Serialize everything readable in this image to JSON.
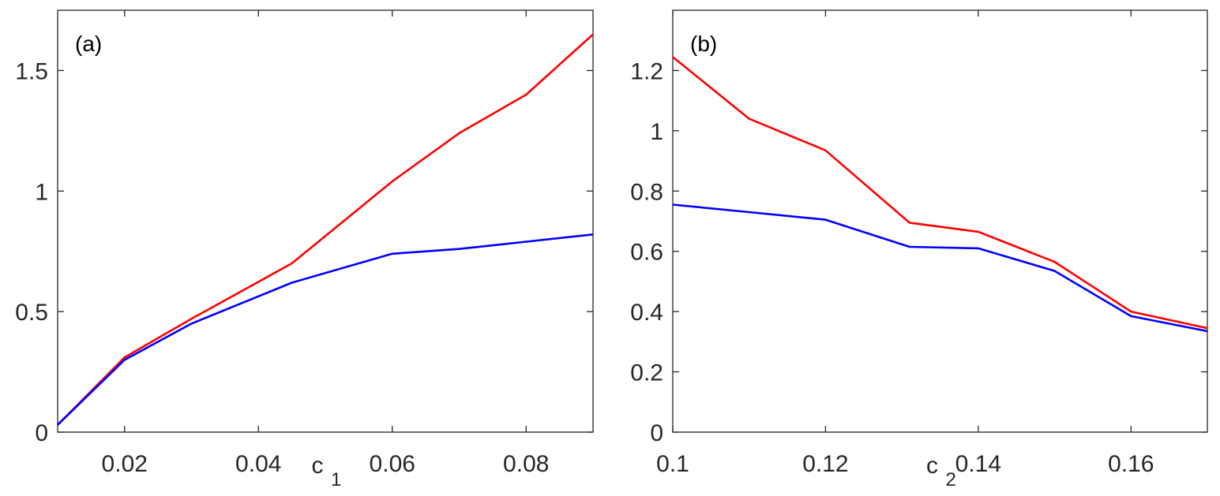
{
  "chart_data": [
    {
      "type": "line",
      "panel_label": "(a)",
      "xlabel": "c",
      "xlabel_sub": "1",
      "ylabel": "",
      "xlim": [
        0.01,
        0.09
      ],
      "ylim": [
        0,
        1.75
      ],
      "xticks": [
        0.02,
        0.04,
        0.06,
        0.08
      ],
      "xtick_labels": [
        "0.02",
        "0.04",
        "0.06",
        "0.08"
      ],
      "yticks": [
        0,
        0.5,
        1,
        1.5
      ],
      "ytick_labels": [
        "0",
        "0.5",
        "1",
        "1.5"
      ],
      "grid": false,
      "series": [
        {
          "color": "#ff0000",
          "x": [
            0.01,
            0.02,
            0.03,
            0.045,
            0.06,
            0.07,
            0.08,
            0.09
          ],
          "y": [
            0.03,
            0.31,
            0.47,
            0.7,
            1.04,
            1.24,
            1.4,
            1.65
          ]
        },
        {
          "color": "#0000ff",
          "x": [
            0.01,
            0.02,
            0.03,
            0.045,
            0.06,
            0.07,
            0.08,
            0.09
          ],
          "y": [
            0.03,
            0.3,
            0.45,
            0.62,
            0.74,
            0.76,
            0.79,
            0.82
          ]
        }
      ]
    },
    {
      "type": "line",
      "panel_label": "(b)",
      "xlabel": "c",
      "xlabel_sub": "2",
      "ylabel": "",
      "xlim": [
        0.1,
        0.17
      ],
      "ylim": [
        0,
        1.4
      ],
      "xticks": [
        0.1,
        0.12,
        0.14,
        0.16
      ],
      "xtick_labels": [
        "0.1",
        "0.12",
        "0.14",
        "0.16"
      ],
      "yticks": [
        0,
        0.2,
        0.4,
        0.6,
        0.8,
        1,
        1.2
      ],
      "ytick_labels": [
        "0",
        "0.2",
        "0.4",
        "0.6",
        "0.8",
        "1",
        "1.2"
      ],
      "grid": false,
      "series": [
        {
          "color": "#ff0000",
          "x": [
            0.1,
            0.11,
            0.12,
            0.131,
            0.14,
            0.15,
            0.16,
            0.17
          ],
          "y": [
            1.245,
            1.04,
            0.935,
            0.695,
            0.665,
            0.565,
            0.4,
            0.345
          ]
        },
        {
          "color": "#0000ff",
          "x": [
            0.1,
            0.11,
            0.12,
            0.131,
            0.14,
            0.15,
            0.16,
            0.17
          ],
          "y": [
            0.755,
            0.73,
            0.705,
            0.615,
            0.61,
            0.535,
            0.385,
            0.335
          ]
        }
      ]
    }
  ]
}
